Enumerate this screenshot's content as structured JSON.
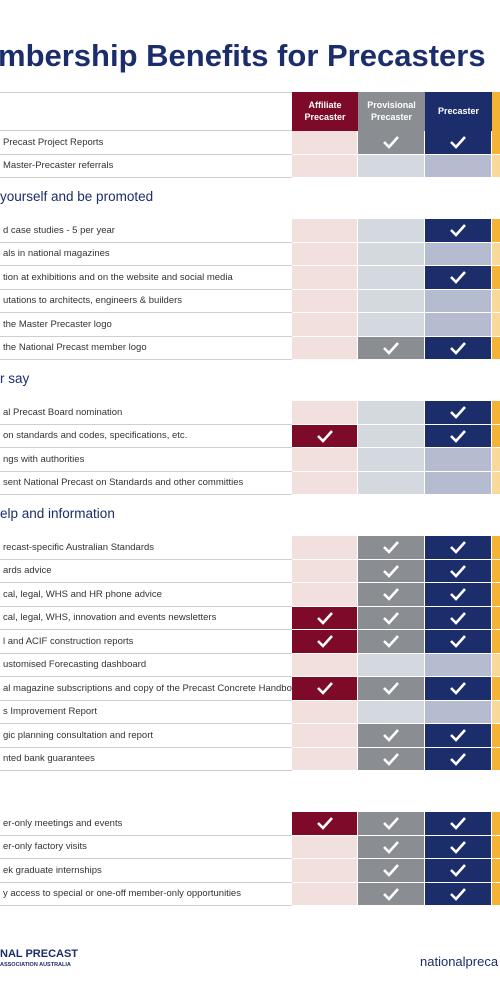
{
  "header": {
    "title": "mbership Benefits for Precasters"
  },
  "columns": [
    "Affiliate Precaster",
    "Provisional Precaster",
    "Precaster"
  ],
  "sections": [
    {
      "rows": [
        {
          "label": "Precast Project Reports",
          "tiers": [
            false,
            true,
            true
          ]
        },
        {
          "label": "Master-Precaster referrals",
          "tiers": [
            false,
            false,
            false
          ]
        }
      ]
    },
    {
      "title": "yourself and be promoted",
      "rows": [
        {
          "label": "d case studies - 5 per year",
          "tiers": [
            false,
            false,
            true
          ]
        },
        {
          "label": "als in national magazines",
          "tiers": [
            false,
            false,
            false
          ]
        },
        {
          "label": "tion at exhibitions and on the website and social media",
          "tiers": [
            false,
            false,
            true
          ]
        },
        {
          "label": "utations to architects, engineers & builders",
          "tiers": [
            false,
            false,
            false
          ]
        },
        {
          "label": "the Master Precaster logo",
          "tiers": [
            false,
            false,
            false
          ]
        },
        {
          "label": "the National Precast member logo",
          "tiers": [
            false,
            true,
            true
          ]
        }
      ]
    },
    {
      "title": "r say",
      "rows": [
        {
          "label": "al Precast Board nomination",
          "tiers": [
            false,
            false,
            true
          ]
        },
        {
          "label": "on standards and codes, specifications, etc.",
          "tiers": [
            true,
            false,
            true
          ]
        },
        {
          "label": "ngs with authorities",
          "tiers": [
            false,
            false,
            false
          ]
        },
        {
          "label": "sent National Precast on Standards and other committies",
          "tiers": [
            false,
            false,
            false
          ]
        }
      ]
    },
    {
      "title": "elp and information",
      "rows": [
        {
          "label": "recast-specific Australian Standards",
          "tiers": [
            false,
            true,
            true
          ]
        },
        {
          "label": "ards advice",
          "tiers": [
            false,
            true,
            true
          ]
        },
        {
          "label": "cal, legal, WHS and HR phone advice",
          "tiers": [
            false,
            true,
            true
          ]
        },
        {
          "label": "cal, legal, WHS, innovation and events newsletters",
          "tiers": [
            true,
            true,
            true
          ]
        },
        {
          "label": "l and ACIF construction reports",
          "tiers": [
            true,
            true,
            true
          ]
        },
        {
          "label": "ustomised Forecasting dashboard",
          "tiers": [
            false,
            false,
            false
          ]
        },
        {
          "label": "al magazine subscriptions and copy of the Precast Concrete Handbook",
          "tiers": [
            true,
            true,
            true
          ]
        },
        {
          "label": "s Improvement Report",
          "tiers": [
            false,
            false,
            false
          ]
        },
        {
          "label": "gic planning consultation and report",
          "tiers": [
            false,
            true,
            true
          ]
        },
        {
          "label": "nted bank guarantees",
          "tiers": [
            false,
            true,
            true
          ]
        }
      ]
    },
    {
      "rows": [
        {
          "label": "er-only meetings and events",
          "tiers": [
            true,
            true,
            true
          ]
        },
        {
          "label": "er-only factory visits",
          "tiers": [
            false,
            true,
            true
          ]
        },
        {
          "label": "ek graduate internships",
          "tiers": [
            false,
            true,
            true
          ]
        },
        {
          "label": "y access to special or one-off member-only opportunities",
          "tiers": [
            false,
            true,
            true
          ]
        }
      ]
    }
  ],
  "footer": {
    "logo_main": "NAL PRECAST",
    "logo_sub": "ASSOCIATION AUSTRALIA",
    "website": "nationalpreca"
  }
}
